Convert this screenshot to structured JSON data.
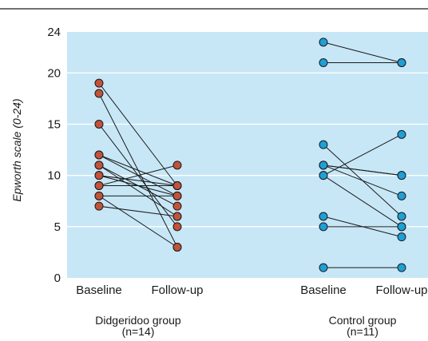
{
  "chart_data": {
    "type": "scatter",
    "subtype": "paired-slope",
    "title": "",
    "ylabel": "Epworth scale (0-24)",
    "ylim": [
      0,
      24
    ],
    "yticks": [
      0,
      5,
      10,
      15,
      20,
      24
    ],
    "grid": true,
    "colors": {
      "background": "#c7e7f7",
      "grid": "#ffffff",
      "didgeridoo_marker": "#c1533a",
      "control_marker": "#1f9fd6",
      "line": "#1a1a1a"
    },
    "groups": [
      {
        "label": "Didgeridoo group",
        "n_label": "(n=14)",
        "time_labels": [
          "Baseline",
          "Follow-up"
        ],
        "marker": "didgeridoo_marker",
        "pairs": [
          [
            19,
            9
          ],
          [
            18,
            3
          ],
          [
            15,
            5
          ],
          [
            12,
            9
          ],
          [
            12,
            8
          ],
          [
            11,
            6
          ],
          [
            11,
            7
          ],
          [
            10,
            9
          ],
          [
            10,
            8
          ],
          [
            9,
            11
          ],
          [
            9,
            9
          ],
          [
            8,
            8
          ],
          [
            8,
            3
          ],
          [
            7,
            6
          ]
        ]
      },
      {
        "label": "Control group",
        "n_label": "(n=11)",
        "time_labels": [
          "Baseline",
          "Follow-up"
        ],
        "marker": "control_marker",
        "pairs": [
          [
            23,
            21
          ],
          [
            21,
            21
          ],
          [
            13,
            6
          ],
          [
            11,
            10
          ],
          [
            11,
            8
          ],
          [
            11,
            10
          ],
          [
            10,
            14
          ],
          [
            10,
            5
          ],
          [
            6,
            4
          ],
          [
            5,
            5
          ],
          [
            1,
            1
          ]
        ]
      }
    ]
  }
}
